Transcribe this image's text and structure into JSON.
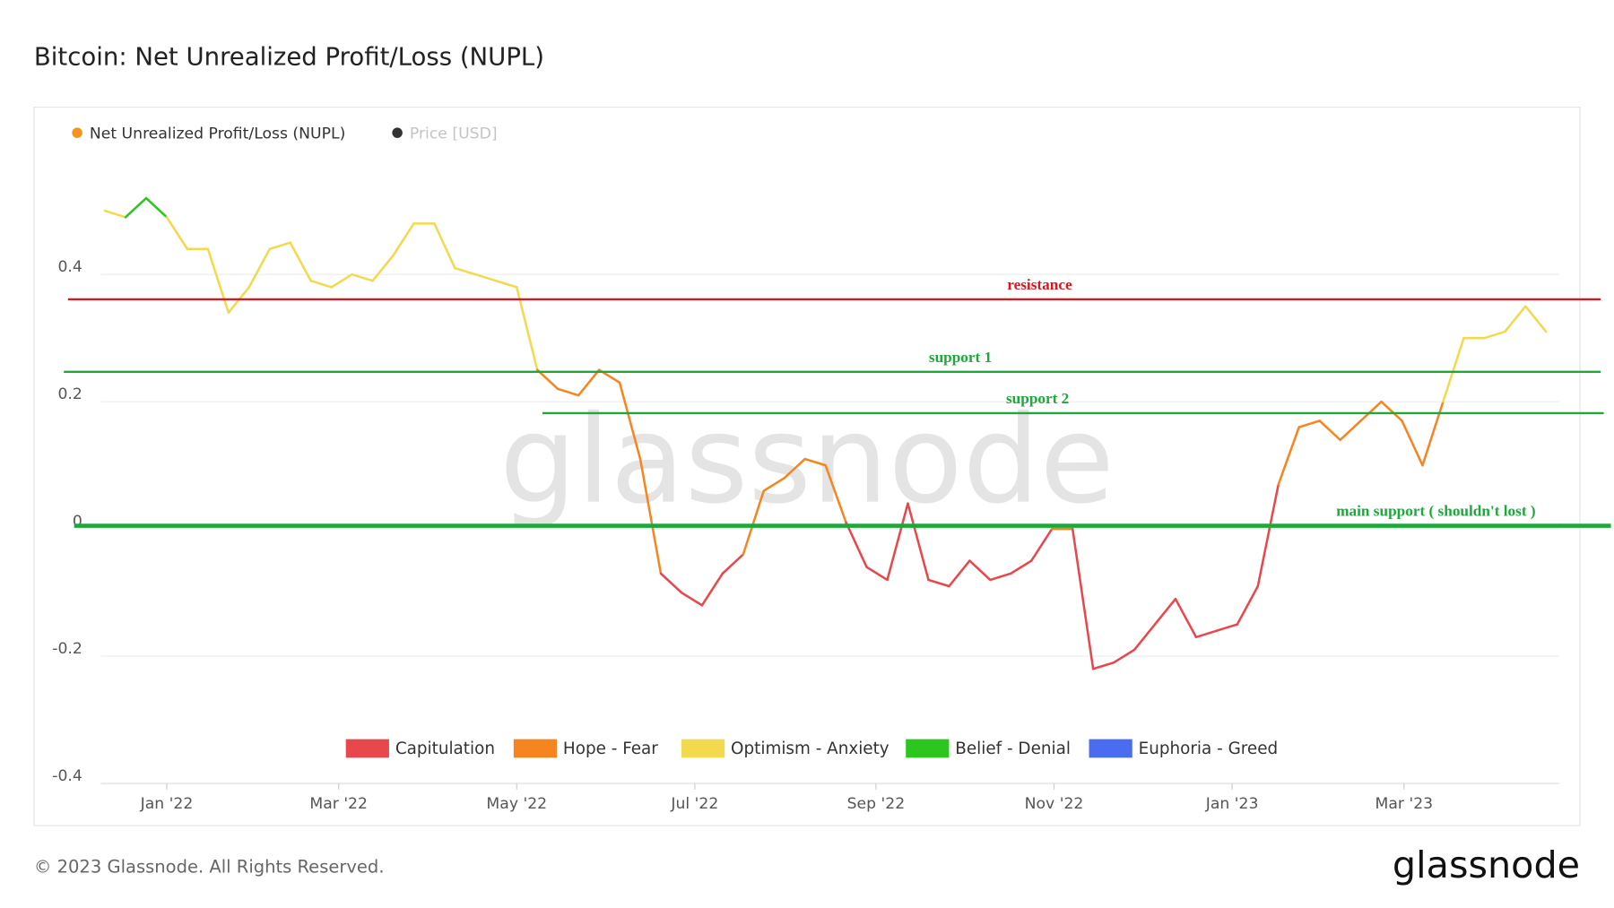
{
  "chart_data": {
    "type": "line",
    "title": "Bitcoin: Net Unrealized Profit/Loss (NUPL)",
    "series": [
      {
        "name": "Net Unrealized Profit/Loss (NUPL)",
        "color": "#f7931a",
        "values": [
          0.5,
          0.49,
          0.52,
          0.49,
          0.44,
          0.44,
          0.34,
          0.38,
          0.44,
          0.45,
          0.39,
          0.38,
          0.4,
          0.39,
          0.43,
          0.48,
          0.48,
          0.41,
          0.4,
          0.39,
          0.38,
          0.25,
          0.22,
          0.21,
          0.25,
          0.23,
          0.11,
          -0.07,
          -0.1,
          -0.12,
          -0.07,
          -0.04,
          0.06,
          0.08,
          0.11,
          0.1,
          0.01,
          -0.06,
          -0.08,
          0.04,
          -0.08,
          -0.09,
          -0.05,
          -0.08,
          -0.07,
          -0.05,
          0.0,
          0.0,
          -0.22,
          -0.21,
          -0.19,
          -0.15,
          -0.11,
          -0.17,
          -0.16,
          -0.15,
          -0.09,
          0.07,
          0.16,
          0.17,
          0.14,
          0.17,
          0.2,
          0.17,
          0.1,
          0.2,
          0.3,
          0.3,
          0.31,
          0.35,
          0.31
        ]
      },
      {
        "name": "Price [USD]",
        "color": "#333333"
      }
    ],
    "zones": [
      {
        "name": "Capitulation",
        "color": "#e8474b",
        "range": [
          -1,
          0
        ]
      },
      {
        "name": "Hope - Fear",
        "color": "#f7851f",
        "range": [
          0,
          0.25
        ]
      },
      {
        "name": "Optimism - Anxiety",
        "color": "#f2d94e",
        "range": [
          0.25,
          0.5
        ]
      },
      {
        "name": "Belief - Denial",
        "color": "#2dc61f",
        "range": [
          0.5,
          0.75
        ]
      },
      {
        "name": "Euphoria - Greed",
        "color": "#4a6cf0",
        "range": [
          0.75,
          1
        ]
      }
    ],
    "xlim": [
      0,
      70
    ],
    "xticks": [
      {
        "value": 3,
        "label": "Jan '22"
      },
      {
        "value": 11.35,
        "label": "Mar '22"
      },
      {
        "value": 20,
        "label": "May '22"
      },
      {
        "value": 28.65,
        "label": "Jul '22"
      },
      {
        "value": 37.45,
        "label": "Sep '22"
      },
      {
        "value": 46.1,
        "label": "Nov '22"
      },
      {
        "value": 54.75,
        "label": "Jan '23"
      },
      {
        "value": 63.1,
        "label": "Mar '23"
      }
    ],
    "ylim": [
      -0.4,
      0.6
    ],
    "yticks": [
      -0.4,
      -0.2,
      0,
      0.2,
      0.4
    ],
    "grid": true,
    "annotations": [
      {
        "label": "resistance",
        "value": 0.361,
        "color": "#e0141e"
      },
      {
        "label": "support 1",
        "value": 0.247,
        "color": "#1ea83c"
      },
      {
        "label": "support 2",
        "value": 0.182,
        "color": "#1ea83c"
      },
      {
        "label": "main support ( shouldn't lost )",
        "value": 0.005,
        "color": "#1ea83c"
      }
    ],
    "watermark": "glassnode",
    "footer": "© 2023 Glassnode. All Rights Reserved.",
    "logo": "glassnode"
  }
}
